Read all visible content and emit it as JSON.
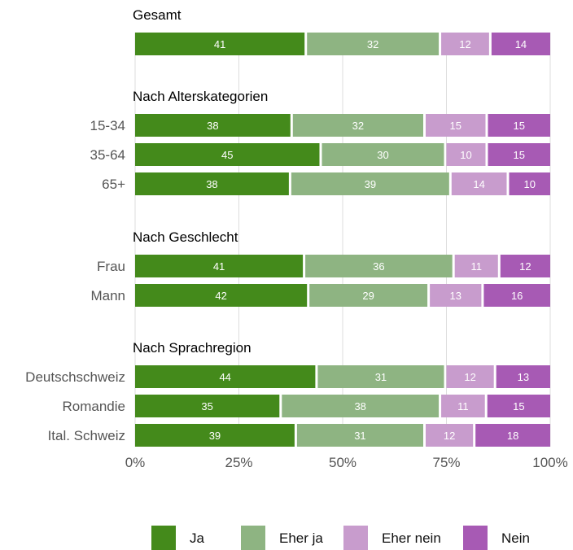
{
  "chart_data": {
    "type": "bar",
    "orientation": "horizontal",
    "stacked": true,
    "percent_scale": true,
    "xlim": [
      0,
      100
    ],
    "x_ticks": [
      "0%",
      "25%",
      "50%",
      "75%",
      "100%"
    ],
    "grid": true,
    "legend_position": "bottom",
    "series": [
      {
        "name": "Ja",
        "color": "#448a1b"
      },
      {
        "name": "Eher ja",
        "color": "#8eb482"
      },
      {
        "name": "Eher nein",
        "color": "#c89ccd"
      },
      {
        "name": "Nein",
        "color": "#a75ab4"
      }
    ],
    "groups": [
      {
        "title": "Gesamt",
        "rows": [
          {
            "label": "",
            "values": [
              41,
              32,
              12,
              14
            ]
          }
        ]
      },
      {
        "title": "Nach Alterskategorien",
        "rows": [
          {
            "label": "15-34",
            "values": [
              38,
              32,
              15,
              15
            ]
          },
          {
            "label": "35-64",
            "values": [
              45,
              30,
              10,
              15
            ]
          },
          {
            "label": "65+",
            "values": [
              38,
              39,
              14,
              10
            ]
          }
        ]
      },
      {
        "title": "Nach Geschlecht",
        "rows": [
          {
            "label": "Frau",
            "values": [
              41,
              36,
              11,
              12
            ]
          },
          {
            "label": "Mann",
            "values": [
              42,
              29,
              13,
              16
            ]
          }
        ]
      },
      {
        "title": "Nach Sprachregion",
        "rows": [
          {
            "label": "Deutschschweiz",
            "values": [
              44,
              31,
              12,
              13
            ]
          },
          {
            "label": "Romandie",
            "values": [
              35,
              38,
              11,
              15
            ]
          },
          {
            "label": "Ital. Schweiz",
            "values": [
              39,
              31,
              12,
              18
            ]
          }
        ]
      }
    ]
  }
}
